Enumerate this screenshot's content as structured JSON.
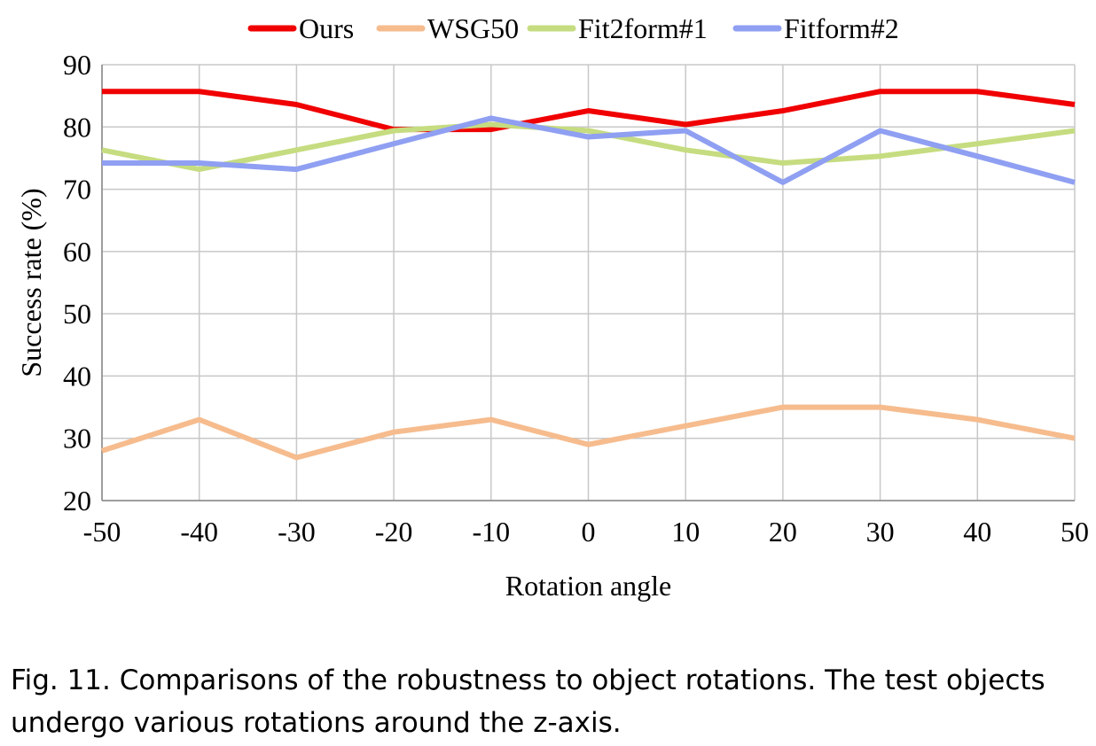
{
  "chart_data": {
    "type": "line",
    "xlabel": "Rotation angle",
    "ylabel": "Success rate (%)",
    "x": [
      -50,
      -40,
      -30,
      -20,
      -10,
      0,
      10,
      20,
      30,
      40,
      50
    ],
    "xlim": [
      -50,
      50
    ],
    "ylim": [
      20,
      90
    ],
    "yticks": [
      20,
      30,
      40,
      50,
      60,
      70,
      80,
      90
    ],
    "grid": true,
    "legend_position": "top",
    "series": [
      {
        "name": "Ours",
        "color": "#f00000",
        "values": [
          85.7,
          85.7,
          83.6,
          79.6,
          79.6,
          82.6,
          80.4,
          82.6,
          85.7,
          85.7,
          83.6
        ]
      },
      {
        "name": "WSG50",
        "color": "#f6bc8e",
        "values": [
          28,
          33,
          26.9,
          31,
          33,
          29,
          32,
          35,
          35,
          33,
          30
        ]
      },
      {
        "name": "Fit2form#1",
        "color": "#c6dc80",
        "values": [
          76.3,
          73.2,
          76.3,
          79.4,
          80.4,
          79.4,
          76.3,
          74.2,
          75.3,
          77.3,
          79.4
        ]
      },
      {
        "name": "Fitform#2",
        "color": "#8f9ff2",
        "values": [
          74.2,
          74.2,
          73.2,
          77.3,
          81.4,
          78.4,
          79.4,
          71.1,
          79.4,
          75.3,
          71.1
        ]
      }
    ]
  },
  "caption": "Fig. 11.  Comparisons of the robustness to object rotations. The test objects undergo various rotations around the z-axis."
}
